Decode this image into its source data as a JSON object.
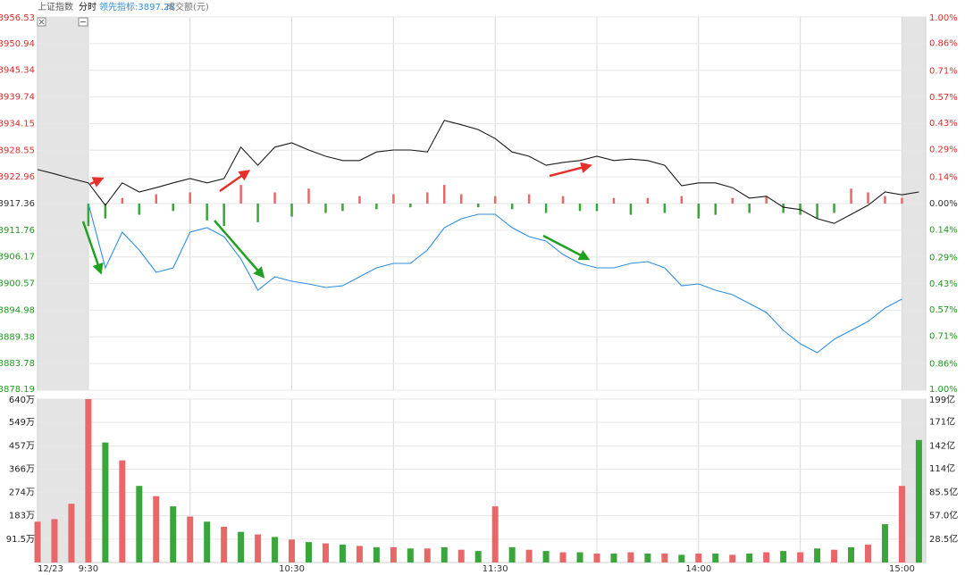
{
  "header": {
    "title": "上证指数",
    "mode": "分时",
    "indicator": "领先指标:3897.28",
    "volume_label": "成交额(元)"
  },
  "chart_data": [
    {
      "type": "line",
      "x": [
        -15,
        -10,
        -5,
        0,
        5,
        10,
        15,
        20,
        25,
        30,
        35,
        40,
        45,
        50,
        55,
        60,
        65,
        70,
        75,
        80,
        85,
        90,
        95,
        100,
        105,
        110,
        115,
        120,
        125,
        130,
        135,
        140,
        145,
        150,
        155,
        160,
        165,
        170,
        175,
        180,
        185,
        190,
        195,
        200,
        205,
        210,
        215,
        220,
        225,
        230,
        235,
        240,
        245
      ],
      "xlim": [
        -15,
        247
      ],
      "xgrid": [
        0,
        30,
        60,
        90,
        120,
        150,
        180,
        210,
        240
      ],
      "ylim": [
        3878.19,
        3956.53
      ],
      "yticks": [
        3878.19,
        3883.78,
        3889.38,
        3894.98,
        3900.57,
        3906.17,
        3911.76,
        3917.36,
        3922.96,
        3928.55,
        3934.15,
        3939.74,
        3945.34,
        3950.94,
        3956.53
      ],
      "y2lim": [
        -1,
        1
      ],
      "y2ticks": [
        {
          "value": -1,
          "label": "1.00%"
        },
        {
          "value": -0.86,
          "label": "0.86%"
        },
        {
          "value": -0.71,
          "label": "0.71%"
        },
        {
          "value": -0.57,
          "label": "0.57%"
        },
        {
          "value": -0.43,
          "label": "0.43%"
        },
        {
          "value": -0.29,
          "label": "0.29%"
        },
        {
          "value": -0.14,
          "label": "0.14%"
        },
        {
          "value": 0,
          "label": "0.00%"
        },
        {
          "value": 0.14,
          "label": "0.14%"
        },
        {
          "value": 0.29,
          "label": "0.29%"
        },
        {
          "value": 0.43,
          "label": "0.43%"
        },
        {
          "value": 0.57,
          "label": "0.57%"
        },
        {
          "value": 0.71,
          "label": "0.71%"
        },
        {
          "value": 0.86,
          "label": "0.86%"
        },
        {
          "value": 1,
          "label": "1.00%"
        }
      ],
      "signed_tick_colors": true,
      "grid": true,
      "series": [
        {
          "type": "bar",
          "axis": "y2",
          "up_color": "#e8686a",
          "down_color": "#3aa53a",
          "values": [
            null,
            null,
            null,
            -0.12,
            -0.08,
            0.03,
            -0.06,
            0.05,
            -0.04,
            0.06,
            -0.09,
            -0.12,
            0.1,
            -0.1,
            0.06,
            -0.07,
            0.08,
            -0.05,
            -0.04,
            0.04,
            -0.03,
            0.05,
            -0.02,
            0.06,
            0.1,
            0.05,
            -0.02,
            0.04,
            -0.03,
            0.05,
            -0.05,
            0.04,
            -0.04,
            -0.04,
            0.03,
            -0.06,
            0.03,
            -0.05,
            0.04,
            -0.08,
            -0.06,
            0.03,
            -0.05,
            0.04,
            -0.05,
            -0.06,
            -0.08,
            -0.05,
            0.08,
            0.06,
            0.04,
            0.03,
            null
          ]
        },
        {
          "type": "line",
          "color": "#1a1a1a",
          "values": [
            3924.5,
            3923.6,
            3922.6,
            3921.7,
            3917.0,
            3921.7,
            3919.8,
            3920.7,
            3921.7,
            3922.6,
            3921.7,
            3922.6,
            3929.2,
            3925.4,
            3929.2,
            3930.1,
            3928.6,
            3927.3,
            3926.4,
            3926.4,
            3928.2,
            3928.6,
            3928.6,
            3928.2,
            3934.8,
            3933.9,
            3932.9,
            3931.0,
            3928.2,
            3927.3,
            3925.4,
            3926.0,
            3926.4,
            3927.3,
            3926.4,
            3926.7,
            3926.4,
            3925.4,
            3921.1,
            3921.7,
            3921.7,
            3920.7,
            3918.5,
            3918.9,
            3916.6,
            3916.1,
            3914.2,
            3913.2,
            3915.1,
            3917.0,
            3919.8,
            3919.2,
            3919.8
          ]
        },
        {
          "type": "line",
          "color": "#2f8ee0",
          "values": [
            null,
            null,
            null,
            3917.36,
            3903.86,
            3911.37,
            3907.62,
            3902.93,
            3903.86,
            3911.37,
            3912.3,
            3910.42,
            3905.74,
            3899.18,
            3901.99,
            3901.05,
            3900.49,
            3899.74,
            3900.12,
            3901.99,
            3903.86,
            3904.8,
            3904.8,
            3907.62,
            3912.3,
            3914.17,
            3915.11,
            3915.11,
            3912.3,
            3910.42,
            3909.49,
            3906.68,
            3904.8,
            3903.86,
            3903.86,
            3904.8,
            3905.18,
            3903.86,
            3900.12,
            3900.49,
            3899.18,
            3898.24,
            3896.37,
            3894.5,
            3890.75,
            3887.94,
            3886.06,
            3888.87,
            3890.75,
            3892.62,
            3895.43,
            3897.31,
            null
          ]
        }
      ]
    },
    {
      "type": "bar",
      "x": [
        -15,
        -10,
        -5,
        0,
        5,
        10,
        15,
        20,
        25,
        30,
        35,
        40,
        45,
        50,
        55,
        60,
        65,
        70,
        75,
        80,
        85,
        90,
        95,
        100,
        105,
        110,
        115,
        120,
        125,
        130,
        135,
        140,
        145,
        150,
        155,
        160,
        165,
        170,
        175,
        180,
        185,
        190,
        195,
        200,
        205,
        210,
        215,
        220,
        225,
        230,
        235,
        240,
        245
      ],
      "xlim": [
        -15,
        247
      ],
      "xgrid": [
        0,
        30,
        60,
        90,
        120,
        150,
        180,
        210,
        240
      ],
      "xticks": [
        {
          "value": -15,
          "label": "12/23"
        },
        {
          "value": 0,
          "label": "9:30"
        },
        {
          "value": 60,
          "label": "10:30"
        },
        {
          "value": 120,
          "label": "11:30"
        },
        {
          "value": 180,
          "label": "14:00"
        },
        {
          "value": 240,
          "label": "15:00"
        }
      ],
      "ylim": [
        0,
        640
      ],
      "yticks": [
        {
          "value": 91.5,
          "label": "91.5万"
        },
        {
          "value": 183,
          "label": "183万"
        },
        {
          "value": 274,
          "label": "274万"
        },
        {
          "value": 366,
          "label": "366万"
        },
        {
          "value": 457,
          "label": "457万"
        },
        {
          "value": 549,
          "label": "549万"
        },
        {
          "value": 640,
          "label": "640万"
        }
      ],
      "y2lim": [
        0,
        199
      ],
      "y2ticks": [
        {
          "value": 28.5,
          "label": "28.5亿"
        },
        {
          "value": 57,
          "label": "57.0亿"
        },
        {
          "value": 85.5,
          "label": "85.5亿"
        },
        {
          "value": 114,
          "label": "114亿"
        },
        {
          "value": 142,
          "label": "142亿"
        },
        {
          "value": 171,
          "label": "171亿"
        },
        {
          "value": 199,
          "label": "199亿"
        }
      ],
      "grid": true,
      "series": [
        {
          "color": "#e8686a",
          "values": [
            160,
            170,
            230,
            640,
            null,
            400,
            null,
            260,
            null,
            180,
            null,
            140,
            null,
            110,
            null,
            90,
            null,
            75,
            null,
            65,
            null,
            60,
            null,
            55,
            null,
            50,
            null,
            220,
            null,
            50,
            null,
            40,
            null,
            35,
            null,
            40,
            null,
            35,
            null,
            35,
            null,
            30,
            null,
            40,
            null,
            40,
            null,
            50,
            null,
            70,
            null,
            300,
            null
          ]
        },
        {
          "color": "#3aa53a",
          "values": [
            null,
            null,
            null,
            null,
            470,
            null,
            300,
            null,
            220,
            null,
            160,
            null,
            120,
            null,
            100,
            null,
            80,
            null,
            70,
            null,
            60,
            null,
            55,
            null,
            60,
            null,
            45,
            null,
            60,
            null,
            45,
            null,
            40,
            null,
            35,
            null,
            35,
            null,
            30,
            null,
            35,
            null,
            35,
            null,
            45,
            null,
            55,
            null,
            60,
            null,
            150,
            null,
            480
          ]
        }
      ]
    }
  ]
}
